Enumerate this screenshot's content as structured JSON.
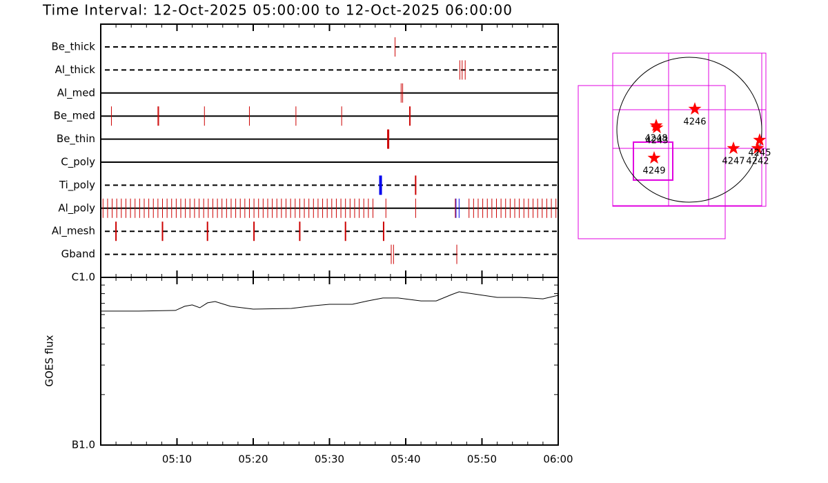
{
  "chart_data": [
    {
      "type": "timeline",
      "title": "Time Interval: 12-Oct-2025 05:00:00 to 12-Oct-2025 06:00:00",
      "xlim": [
        0,
        60
      ],
      "xticks": [
        {
          "value": 10,
          "label": "05:10"
        },
        {
          "value": 20,
          "label": "05:20"
        },
        {
          "value": 30,
          "label": "05:30"
        },
        {
          "value": 40,
          "label": "05:40"
        },
        {
          "value": 50,
          "label": "05:50"
        },
        {
          "value": 60,
          "label": "06:00"
        }
      ],
      "xminorticks": [
        2,
        4,
        6,
        8,
        12,
        14,
        16,
        18,
        22,
        24,
        26,
        28,
        32,
        34,
        36,
        38,
        42,
        44,
        46,
        48,
        52,
        54,
        56,
        58
      ],
      "rows": [
        {
          "name": "Be_thick",
          "style": "dashed",
          "groups": [
            {
              "color": "#cc0000",
              "width": 1,
              "times": [
                38.6
              ]
            }
          ]
        },
        {
          "name": "Al_thick",
          "style": "dashed",
          "groups": [
            {
              "color": "#cc0000",
              "width": 1,
              "times": [
                47.1,
                47.4,
                47.8
              ]
            }
          ]
        },
        {
          "name": "Al_med",
          "style": "solid",
          "groups": [
            {
              "color": "#cc0000",
              "width": 1,
              "times": [
                39.4,
                39.6
              ]
            }
          ]
        },
        {
          "name": "Be_med",
          "style": "solid",
          "groups": [
            {
              "color": "#cc0000",
              "width": 1,
              "times": [
                1.4,
                7.5,
                7.6,
                13.6,
                19.5,
                25.6,
                31.6,
                40.5,
                40.6
              ]
            }
          ]
        },
        {
          "name": "Be_thin",
          "style": "solid",
          "groups": [
            {
              "color": "#cc0000",
              "width": 3,
              "times": [
                37.7
              ]
            }
          ]
        },
        {
          "name": "C_poly",
          "style": "solid",
          "groups": []
        },
        {
          "name": "Ti_poly",
          "style": "dashed",
          "groups": [
            {
              "color": "#0000ee",
              "width": 4,
              "times": [
                36.7
              ]
            },
            {
              "color": "#cc0000",
              "width": 2,
              "times": [
                41.3
              ]
            }
          ]
        },
        {
          "name": "Al_poly",
          "style": "solid",
          "groups": [
            {
              "color": "#cc0000",
              "width": 1,
              "times": [
                0.3,
                0.9,
                1.5,
                2.1,
                2.7,
                3.3,
                3.9,
                4.5,
                5.1,
                5.7,
                6.3,
                6.9,
                7.5,
                8.1,
                8.7,
                9.3,
                9.9,
                10.5,
                11.1,
                11.7,
                12.3,
                12.9,
                13.5,
                14.1,
                14.7,
                15.3,
                15.9,
                16.5,
                17.1,
                17.7,
                18.3,
                18.9,
                19.5,
                20.1,
                20.7,
                21.3,
                21.9,
                22.5,
                23.1,
                23.7,
                24.3,
                24.9,
                25.5,
                26.1,
                26.7,
                27.3,
                27.9,
                28.5,
                29.1,
                29.7,
                30.3,
                30.9,
                31.5,
                32.1,
                32.7,
                33.3,
                33.9,
                34.5,
                35.1,
                35.7,
                37.4,
                41.3,
                46.5,
                48.3,
                48.9,
                49.5,
                50.1,
                50.7,
                51.3,
                51.9,
                52.5,
                53.1,
                53.7,
                54.3,
                54.9,
                55.5,
                56.1,
                56.7,
                57.3,
                57.9,
                58.5,
                59.1,
                59.7
              ]
            },
            {
              "color": "#0000ee",
              "width": 1,
              "times": [
                46.6,
                47.0
              ]
            }
          ]
        },
        {
          "name": "Al_mesh",
          "style": "dashed",
          "groups": [
            {
              "color": "#cc0000",
              "width": 2,
              "times": [
                2.0,
                8.1,
                14.0,
                20.1,
                26.1,
                32.1,
                37.1
              ]
            }
          ]
        },
        {
          "name": "Gband",
          "style": "dashed",
          "groups": [
            {
              "color": "#cc0000",
              "width": 1,
              "times": [
                38.1,
                38.4,
                46.7
              ]
            }
          ]
        }
      ]
    },
    {
      "type": "line",
      "ylabel": "GOES flux",
      "log_scale": true,
      "color": "#000000",
      "x": [
        0,
        5,
        9.8,
        11,
        12,
        13,
        14,
        15,
        17,
        20,
        25,
        28,
        30,
        33,
        35,
        37,
        39,
        42,
        44,
        46,
        47,
        49,
        52,
        55,
        58,
        60
      ],
      "values": [
        6.29e-07,
        6.29e-07,
        6.35e-07,
        6.72e-07,
        6.85e-07,
        6.59e-07,
        7.05e-07,
        7.18e-07,
        6.72e-07,
        6.47e-07,
        6.53e-07,
        6.78e-07,
        6.91e-07,
        6.91e-07,
        7.24e-07,
        7.53e-07,
        7.53e-07,
        7.24e-07,
        7.24e-07,
        7.89e-07,
        8.2e-07,
        7.96e-07,
        7.6e-07,
        7.6e-07,
        7.45e-07,
        7.82e-07
      ],
      "xlim": [
        0,
        60
      ],
      "ylim": [
        1e-07,
        1e-06
      ],
      "yticks": [
        {
          "value": 1e-07,
          "label": "B1.0"
        },
        {
          "value": 1e-06,
          "label": "C1.0"
        }
      ],
      "yminorticks": [
        2e-07,
        3e-07,
        4e-07,
        5e-07,
        6e-07,
        7e-07,
        8e-07,
        9e-07
      ]
    },
    {
      "type": "map",
      "color": "#ff0000",
      "xlim": [
        -1015,
        1015
      ],
      "ylim": [
        -1015,
        1015
      ],
      "solar_radius": 960,
      "points": [
        {
          "label": "4246",
          "x": 73,
          "y": 274
        },
        {
          "label": "4248",
          "x": -439,
          "y": 55
        },
        {
          "label": "4243",
          "x": -430,
          "y": 27
        },
        {
          "label": "4249",
          "x": -466,
          "y": -375
        },
        {
          "label": "4247",
          "x": 585,
          "y": -247
        },
        {
          "label": "4242",
          "x": 905,
          "y": -247
        },
        {
          "label": "4245",
          "x": 932,
          "y": -137
        }
      ]
    }
  ]
}
